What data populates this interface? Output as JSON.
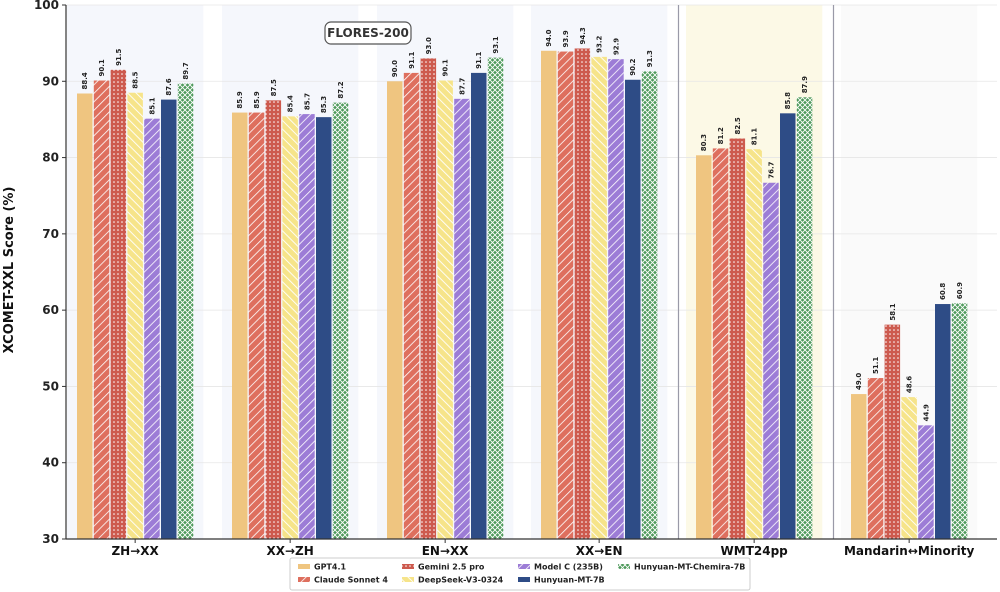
{
  "chart_data": {
    "type": "bar",
    "title": "",
    "xlabel": "",
    "ylabel": "XCOMET-XXL Score (%)",
    "ylim": [
      30,
      100
    ],
    "yticks": [
      30,
      40,
      50,
      60,
      70,
      80,
      90,
      100
    ],
    "annotation": "FLORES-200",
    "categories": [
      "ZH→XX",
      "XX→ZH",
      "EN→XX",
      "XX→EN",
      "WMT24pp",
      "Mandarin↔Minority"
    ],
    "series": [
      {
        "name": "GPT4.1",
        "color": "#EFC580",
        "pattern": "solid",
        "values": [
          88.4,
          85.9,
          90.0,
          94.0,
          80.3,
          49.0
        ]
      },
      {
        "name": "Claude Sonnet 4",
        "color": "#DE6F5E",
        "pattern": "diag",
        "values": [
          90.1,
          85.9,
          91.1,
          93.9,
          81.2,
          51.1
        ]
      },
      {
        "name": "Gemini 2.5 pro",
        "color": "#CD5A4E",
        "pattern": "dots",
        "values": [
          91.5,
          87.5,
          93.0,
          94.3,
          82.5,
          58.1
        ]
      },
      {
        "name": "DeepSeek-V3-0324",
        "color": "#F6E48A",
        "pattern": "backdiag",
        "values": [
          88.5,
          85.4,
          90.1,
          93.2,
          81.1,
          48.6
        ]
      },
      {
        "name": "Model C (235B)",
        "color": "#9C7CD6",
        "pattern": "diag",
        "values": [
          85.1,
          85.7,
          87.7,
          92.9,
          76.7,
          44.9
        ]
      },
      {
        "name": "Hunyuan-MT-7B",
        "color": "#2E4C86",
        "pattern": "solid",
        "values": [
          87.6,
          85.3,
          91.1,
          90.2,
          85.8,
          60.8
        ]
      },
      {
        "name": "Hunyuan-MT-Chemira-7B",
        "color": "#4E9A5C",
        "pattern": "cross",
        "values": [
          89.7,
          87.2,
          93.1,
          91.3,
          87.9,
          60.9
        ]
      }
    ],
    "legend_position": "bottom-center"
  }
}
